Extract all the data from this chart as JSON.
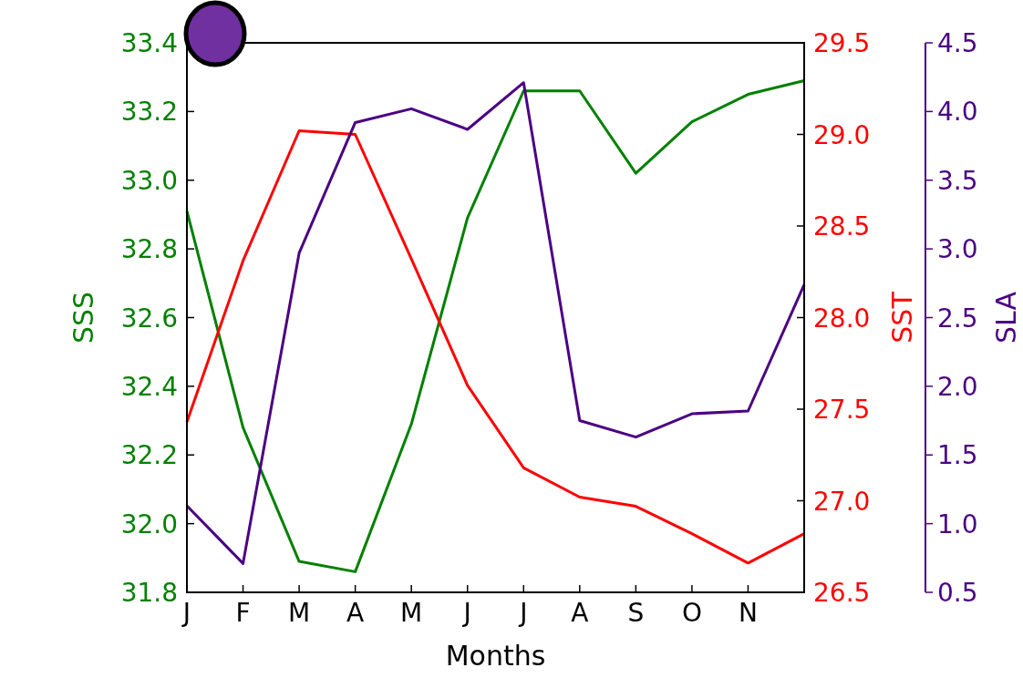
{
  "chart_data": {
    "type": "line",
    "xlabel": "Months",
    "ylabel": "SSS",
    "y2label": "SST",
    "y3label": "SLA",
    "categories": [
      "J",
      "F",
      "M",
      "A",
      "M",
      "J",
      "J",
      "A",
      "S",
      "O",
      "N",
      null
    ],
    "ylim": [
      31.8,
      33.4
    ],
    "yticks": [
      {
        "value": 31.8,
        "label": "31.8"
      },
      {
        "value": 32,
        "label": "32.0"
      },
      {
        "value": 32.2,
        "label": "32.2"
      },
      {
        "value": 32.4,
        "label": "32.4"
      },
      {
        "value": 32.6,
        "label": "32.6"
      },
      {
        "value": 32.8,
        "label": "32.8"
      },
      {
        "value": 33,
        "label": "33.0"
      },
      {
        "value": 33.2,
        "label": "33.2"
      },
      {
        "value": 33.4,
        "label": "33.4"
      }
    ],
    "y2lim": [
      26.5,
      29.5
    ],
    "y2ticks": [
      26.5,
      {
        "value": 27,
        "label": "27.0"
      },
      27.5,
      {
        "value": 28,
        "label": "28.0"
      },
      28.5,
      {
        "value": 29,
        "label": "29.0"
      },
      29.5
    ],
    "y3lim": [
      0.5,
      4.5
    ],
    "y3ticks": [
      0.5,
      {
        "value": 1,
        "label": "1.0"
      },
      1.5,
      {
        "value": 2,
        "label": "2.0"
      },
      2.5,
      {
        "value": 3,
        "label": "3.0"
      },
      3.5,
      {
        "value": 4,
        "label": "4.0"
      },
      4.5
    ],
    "series": [
      {
        "color": "#008000",
        "axis": "y",
        "values": [
          32.91,
          32.28,
          31.89,
          31.86,
          32.29,
          32.89,
          33.26,
          33.26,
          33.02,
          33.17,
          33.25,
          33.29
        ]
      },
      {
        "color": "#ff0000",
        "axis": "y2",
        "values": [
          27.43,
          28.31,
          29.02,
          29.0,
          28.32,
          27.63,
          27.18,
          27.02,
          26.97,
          26.82,
          26.66,
          26.82
        ]
      },
      {
        "color": "#4b0082",
        "axis": "y3",
        "values": [
          1.13,
          0.71,
          2.97,
          3.92,
          4.02,
          3.87,
          4.21,
          1.75,
          1.63,
          1.8,
          1.82,
          2.74
        ]
      }
    ],
    "grid": false
  }
}
